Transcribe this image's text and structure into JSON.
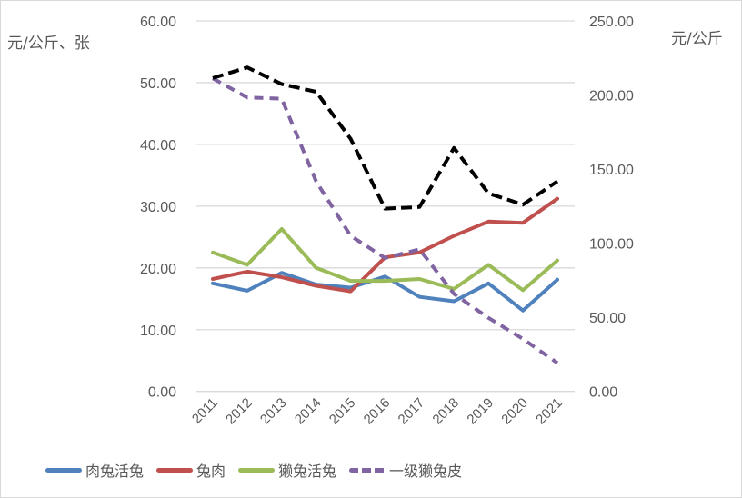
{
  "chart_data": {
    "type": "line",
    "categories": [
      "2011",
      "2012",
      "2013",
      "2014",
      "2015",
      "2016",
      "2017",
      "2018",
      "2019",
      "2020",
      "2021"
    ],
    "y_left": {
      "label": "元/公斤、张",
      "range": [
        0,
        60
      ],
      "ticks": [
        "0.00",
        "10.00",
        "20.00",
        "30.00",
        "40.00",
        "50.00",
        "60.00"
      ]
    },
    "y_right": {
      "label": "元/公斤",
      "range": [
        0,
        250
      ],
      "ticks": [
        "0.00",
        "50.00",
        "100.00",
        "150.00",
        "200.00",
        "250.00"
      ]
    },
    "grid": true,
    "legend_position": "bottom",
    "series": [
      {
        "name": "肉兔活兔",
        "axis": "left",
        "color": "#4f81bd",
        "dash": false,
        "values": [
          17.5,
          16.3,
          19.2,
          17.3,
          16.8,
          18.6,
          15.3,
          14.6,
          17.5,
          13.1,
          18.1
        ]
      },
      {
        "name": "兔肉",
        "axis": "left",
        "color": "#c0504d",
        "dash": false,
        "values": [
          18.2,
          19.4,
          18.5,
          17.1,
          16.2,
          21.7,
          22.5,
          25.2,
          27.5,
          27.3,
          31.2
        ]
      },
      {
        "name": "獭兔活兔",
        "axis": "left",
        "color": "#9bbb59",
        "dash": false,
        "values": [
          22.5,
          20.5,
          26.3,
          20.0,
          17.9,
          17.9,
          18.2,
          16.6,
          20.5,
          16.4,
          21.2
        ]
      },
      {
        "name": "一级獭兔皮",
        "axis": "left",
        "color": "#8064a2",
        "dash": true,
        "values": [
          50.7,
          47.6,
          47.4,
          34.0,
          25.2,
          21.6,
          23.0,
          15.8,
          11.9,
          8.5,
          4.6
        ]
      },
      {
        "axis": "right",
        "color": "#000000",
        "dash": true,
        "values": [
          211.4,
          218.6,
          207.3,
          202.2,
          170.4,
          123.3,
          124.4,
          164.3,
          133.6,
          126.0,
          141.8
        ]
      }
    ]
  }
}
